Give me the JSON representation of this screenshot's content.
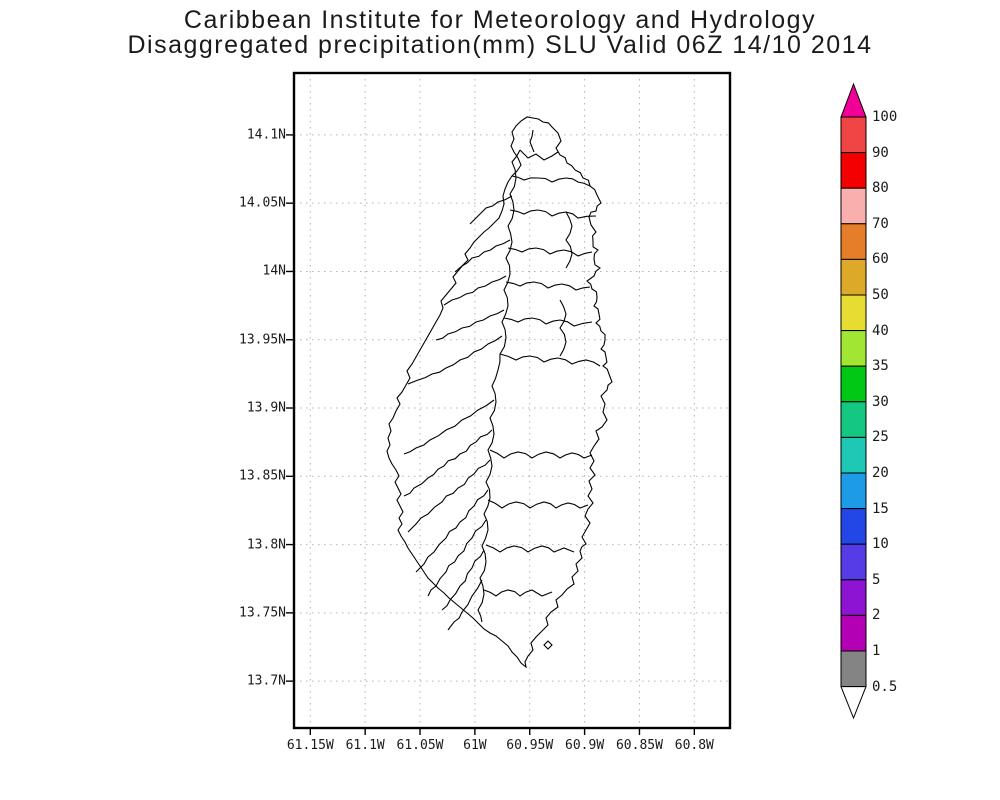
{
  "header": {
    "title_line1": "Caribbean Institute for Meteorology and Hydrology",
    "title_line2": "Disaggregated precipitation(mm) SLU Valid 06Z 14/10 2014"
  },
  "chart_data": {
    "type": "map",
    "title": "Caribbean Institute for Meteorology and Hydrology",
    "subtitle": "Disaggregated precipitation(mm) SLU Valid 06Z 14/10 2014",
    "region": "Saint Lucia (SLU)",
    "variable": "Disaggregated precipitation (mm)",
    "valid_time": "06Z 14/10 2014",
    "map_content": "Island coastline with watershed/river-basin boundary lines; no shaded precipitation values visible",
    "grid": "dotted gray graticule",
    "x_axis": {
      "ticks": [
        "61.15W",
        "61.1W",
        "61.05W",
        "61W",
        "60.95W",
        "60.9W",
        "60.85W",
        "60.8W"
      ],
      "range_deg_west": [
        61.17,
        60.77
      ]
    },
    "y_axis": {
      "ticks": [
        "14.1N",
        "14.05N",
        "14N",
        "13.95N",
        "13.9N",
        "13.85N",
        "13.8N",
        "13.75N",
        "13.7N"
      ],
      "range_deg_north": [
        13.67,
        14.15
      ]
    },
    "legend_position": "right",
    "colorbar": {
      "levels_bottom_up": [
        "0.5",
        "1",
        "2",
        "5",
        "10",
        "15",
        "20",
        "25",
        "30",
        "35",
        "40",
        "50",
        "60",
        "70",
        "80",
        "90",
        "100"
      ],
      "colors_bottom_up": [
        "#848484",
        "#b400b4",
        "#8c14d2",
        "#553ce6",
        "#2346e6",
        "#1e9be6",
        "#1ec8b4",
        "#14c882",
        "#00c814",
        "#a0e632",
        "#e6dc32",
        "#dcaa28",
        "#e67d28",
        "#faafaf",
        "#f50000",
        "#f04545"
      ],
      "over_arrow_color": "#f00096",
      "under_arrow_color": "#ffffff",
      "line_color": "#000000"
    }
  }
}
